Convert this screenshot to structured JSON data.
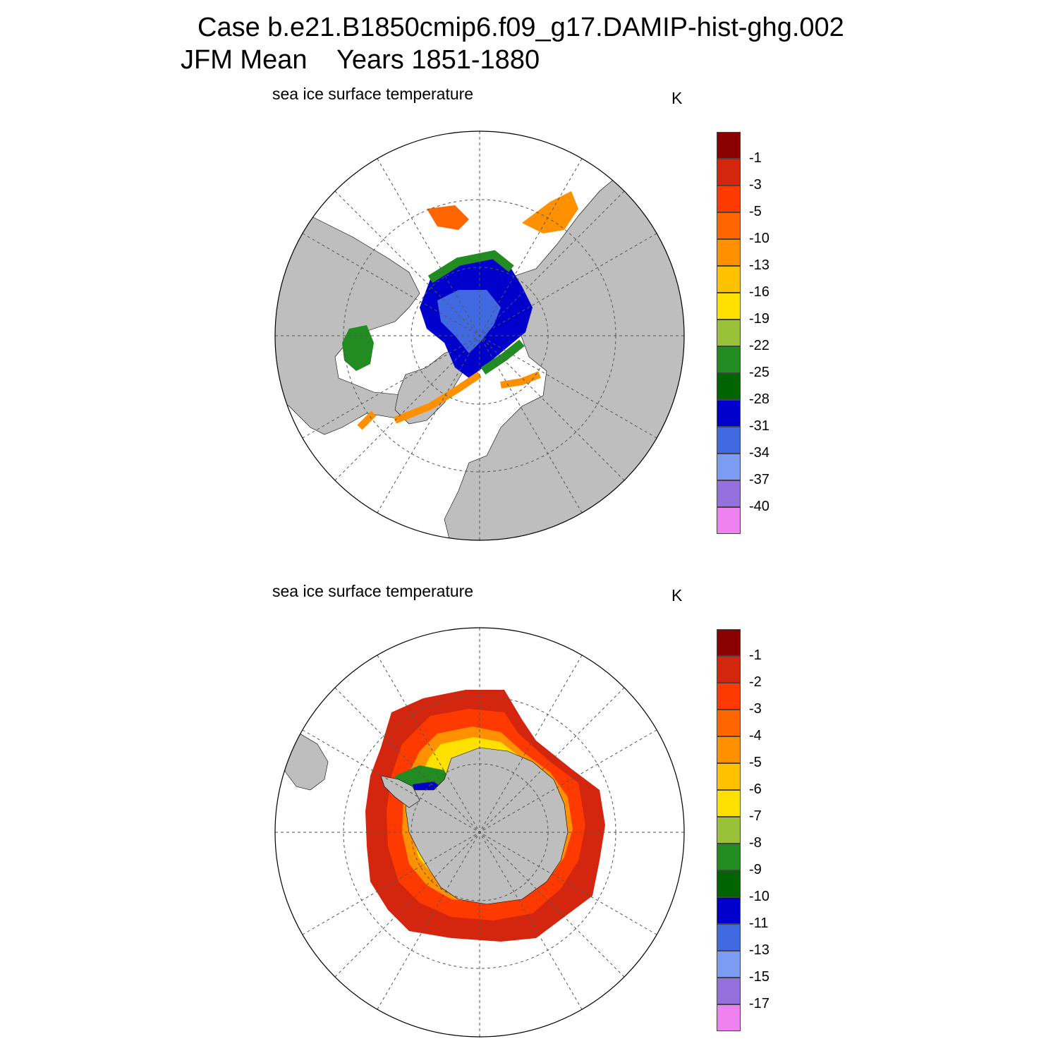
{
  "header": {
    "case_title": "Case b.e21.B1850cmip6.f09_g17.DAMIP-hist-ghg.002",
    "period": "JFM Mean    Years 1851-1880"
  },
  "panels": [
    {
      "hemisphere": "north",
      "variable": "sea ice surface temperature",
      "units": "K",
      "colorbar": {
        "colors": [
          "#8b0000",
          "#d4260f",
          "#ff3a00",
          "#ff6600",
          "#ff9000",
          "#ffc100",
          "#ffe100",
          "#9ac13a",
          "#228b22",
          "#006400",
          "#0000cd",
          "#4169e1",
          "#7b9cf0",
          "#9370db",
          "#ee82ee"
        ],
        "labels": [
          "-1",
          "-3",
          "-5",
          "-10",
          "-13",
          "-16",
          "-19",
          "-22",
          "-25",
          "-28",
          "-31",
          "-34",
          "-37",
          "-40"
        ]
      }
    },
    {
      "hemisphere": "south",
      "variable": "sea ice surface temperature",
      "units": "K",
      "colorbar": {
        "colors": [
          "#8b0000",
          "#d4260f",
          "#ff3a00",
          "#ff6600",
          "#ff9000",
          "#ffc100",
          "#ffe100",
          "#9ac13a",
          "#228b22",
          "#006400",
          "#0000cd",
          "#4169e1",
          "#7b9cf0",
          "#9370db",
          "#ee82ee"
        ],
        "labels": [
          "-1",
          "-2",
          "-3",
          "-4",
          "-5",
          "-6",
          "-7",
          "-8",
          "-9",
          "-10",
          "-11",
          "-13",
          "-15",
          "-17"
        ]
      }
    }
  ],
  "colors": {
    "land": "#bebebe",
    "ocean": "#ffffff",
    "grid": "#555555"
  }
}
